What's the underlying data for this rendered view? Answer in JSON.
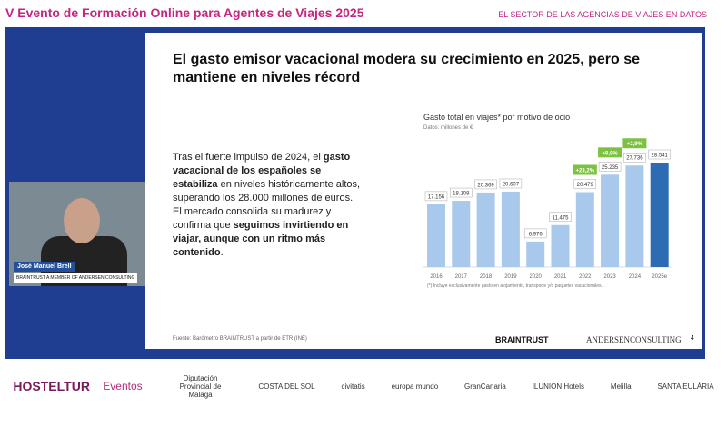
{
  "header": {
    "title": "V Evento de Formación Online para Agentes de Viajes 2025",
    "tagline": "EL SECTOR DE LAS AGENCIAS DE VIAJES EN DATOS"
  },
  "speaker": {
    "name": "José Manuel Brell",
    "company": "BRAINTRUST A MEMBER OF ANDERSEN CONSULTING"
  },
  "slide": {
    "title": "El gasto emisor vacacional modera su crecimiento en 2025, pero se mantiene en niveles récord",
    "paragraph": [
      {
        "text": "Tras el fuerte impulso de 2024, el ",
        "bold": false
      },
      {
        "text": "gasto vacacional de los españoles se estabiliza",
        "bold": true
      },
      {
        "text": " en niveles históricamente altos, superando los 28.000 millones de euros. El mercado consolida su madurez y confirma que ",
        "bold": false
      },
      {
        "text": "seguimos invirtiendo en viajar, aunque con un ritmo más contenido",
        "bold": true
      },
      {
        "text": ".",
        "bold": false
      }
    ],
    "chart": {
      "type": "bar",
      "title": "Gasto total en viajes* por motivo de ocio",
      "subtitle": "Datos: millones de €",
      "categories": [
        "2016",
        "2017",
        "2018",
        "2019",
        "2020",
        "2021",
        "2022",
        "2023",
        "2024",
        "2025e"
      ],
      "values": [
        17156,
        18108,
        20369,
        20607,
        6976,
        11475,
        20479,
        25235,
        27736,
        28541
      ],
      "value_labels": [
        "17.156",
        "18.108",
        "20.369",
        "20.607",
        "6.976",
        "11.475",
        "20.479",
        "25.235",
        "27.736",
        "28.541"
      ],
      "colors": [
        "#a9c9ec",
        "#a9c9ec",
        "#a9c9ec",
        "#a9c9ec",
        "#a9c9ec",
        "#a9c9ec",
        "#a9c9ec",
        "#a9c9ec",
        "#a9c9ec",
        "#2d6cb2"
      ],
      "growth_labels": [
        null,
        null,
        null,
        null,
        null,
        null,
        "+23,2%",
        "+9,9%",
        "+2,9%",
        null
      ],
      "growth_color": "#7cc142",
      "footnote": "(*) Incluye exclusivamente gasto en alojamiento, transporte y/o paquetes vacacionales."
    },
    "source": "Fuente: Barómetro BRAINTRUST a partir de ETR (INE)",
    "brand": "BRAINTRUST",
    "partner": "ANDERSENCONSULTING",
    "page": "4"
  },
  "sponsors": [
    "HOSTELTUR",
    "Eventos",
    "Diputación Provincial de Málaga",
    "COSTA DEL SOL",
    "civitatis",
    "europa mundo",
    "GranCanaria",
    "ILUNION Hotels",
    "Melilla",
    "SANTA EULÀRIA"
  ]
}
